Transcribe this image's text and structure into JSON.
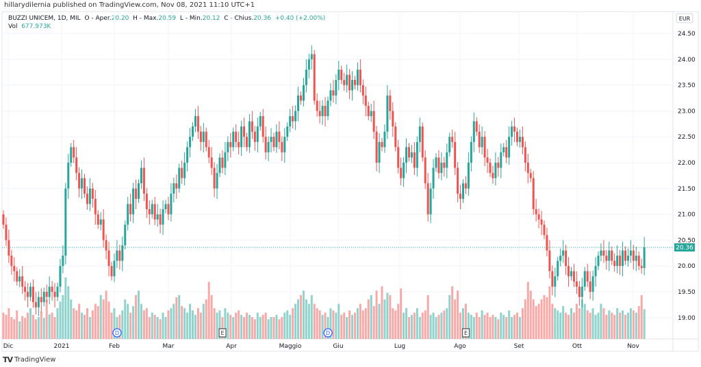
{
  "header": {
    "published": "hillarydilernia published on TradingView.com, Nov 08, 2021 11:10 UTC+1",
    "symbol": "BUZZI UNICEM, 1D, MIL",
    "o_label": "O - Aper.",
    "o": "20.20",
    "h_label": "H - Max.",
    "h": "20.59",
    "l_label": "L - Min.",
    "l": "20.12",
    "c_label": "C - Chius.",
    "c": "20.36",
    "change": "+0.40 (+2.00%)",
    "vol_label": "Vol",
    "vol": "677.973K"
  },
  "brand": {
    "logo": "TV",
    "name": "TradingView"
  },
  "colors": {
    "up": "#26a69a",
    "down": "#ef5350",
    "up_vol": "#8fd3cc",
    "down_vol": "#f7a9a7",
    "grid": "#f0f3fa",
    "event": "#2962ff"
  },
  "chart_data": {
    "type": "candlestick",
    "title": "BUZZI UNICEM, 1D, MIL",
    "currency": "EUR",
    "ylim": [
      18.6,
      24.9
    ],
    "yticks": [
      "24.50",
      "24.00",
      "23.50",
      "23.00",
      "22.50",
      "22.00",
      "21.50",
      "21.00",
      "20.50",
      "20.00",
      "19.50",
      "19.00"
    ],
    "xticks": [
      "Dic",
      "2021",
      "Feb",
      "Mar",
      "Apr",
      "Maggio",
      "Giu",
      "Lug",
      "Ago",
      "Set",
      "Ott",
      "Nov"
    ],
    "last_price": "20.36",
    "first_open": 21.0,
    "close": [
      20.8,
      20.5,
      20.2,
      20.0,
      19.9,
      19.7,
      19.8,
      19.6,
      19.5,
      19.4,
      19.6,
      19.3,
      19.2,
      19.4,
      19.3,
      19.5,
      19.4,
      19.6,
      19.5,
      19.4,
      19.6,
      20.0,
      20.2,
      21.5,
      22.0,
      22.3,
      22.1,
      21.8,
      21.5,
      21.7,
      21.4,
      21.2,
      21.5,
      21.3,
      21.0,
      20.8,
      20.9,
      20.5,
      20.3,
      20.0,
      19.8,
      20.1,
      20.3,
      20.1,
      20.4,
      20.8,
      21.2,
      21.0,
      21.5,
      21.3,
      21.6,
      21.9,
      21.4,
      21.1,
      21.0,
      21.2,
      20.9,
      21.0,
      20.8,
      21.1,
      21.2,
      21.0,
      21.4,
      21.6,
      21.5,
      21.9,
      21.7,
      22.0,
      22.3,
      22.5,
      22.7,
      22.9,
      22.6,
      22.4,
      22.6,
      22.3,
      22.1,
      21.9,
      21.5,
      21.8,
      22.1,
      21.9,
      22.2,
      22.4,
      22.3,
      22.6,
      22.4,
      22.3,
      22.7,
      22.5,
      22.3,
      22.8,
      22.6,
      22.4,
      22.7,
      22.9,
      22.5,
      22.2,
      22.4,
      22.5,
      22.3,
      22.6,
      22.4,
      22.2,
      22.5,
      22.7,
      22.9,
      22.8,
      23.0,
      23.3,
      23.2,
      23.5,
      23.8,
      24.0,
      24.1,
      23.2,
      23.0,
      22.9,
      23.1,
      22.9,
      23.2,
      23.4,
      23.3,
      23.6,
      23.8,
      23.6,
      23.5,
      23.7,
      23.4,
      23.6,
      23.5,
      23.8,
      23.5,
      23.3,
      23.1,
      22.9,
      23.0,
      22.6,
      22.0,
      22.4,
      22.3,
      22.6,
      23.3,
      23.0,
      22.7,
      22.3,
      21.9,
      21.7,
      22.0,
      22.3,
      22.1,
      22.2,
      21.9,
      22.4,
      22.7,
      22.1,
      21.6,
      21.0,
      21.5,
      21.9,
      22.1,
      21.8,
      22.0,
      21.9,
      22.2,
      22.5,
      22.4,
      21.9,
      21.4,
      21.3,
      21.6,
      21.5,
      22.0,
      22.4,
      22.8,
      22.6,
      22.3,
      22.5,
      22.1,
      22.0,
      21.8,
      21.7,
      22.0,
      21.9,
      22.2,
      22.3,
      22.1,
      22.5,
      22.7,
      22.6,
      22.4,
      22.5,
      22.3,
      22.0,
      21.8,
      21.7,
      21.1,
      21.0,
      20.9,
      20.8,
      20.6,
      20.3,
      19.9,
      19.6,
      19.8,
      20.1,
      20.2,
      20.3,
      20.0,
      19.8,
      19.9,
      19.7,
      19.6,
      19.4,
      19.6,
      19.9,
      19.7,
      19.5,
      19.8,
      20.0,
      20.2,
      20.3,
      20.2,
      20.1,
      20.3,
      20.1,
      20.0,
      20.2,
      20.0,
      20.3,
      20.1,
      20.2,
      20.3,
      20.1,
      20.2,
      20.0,
      19.96,
      20.36
    ],
    "volume_k": [
      600,
      550,
      700,
      500,
      450,
      650,
      400,
      520,
      480,
      600,
      700,
      550,
      450,
      500,
      620,
      480,
      900,
      560,
      600,
      500,
      700,
      850,
      1000,
      1400,
      1200,
      900,
      700,
      650,
      800,
      600,
      550,
      700,
      500,
      650,
      800,
      750,
      1000,
      900,
      1100,
      850,
      600,
      700,
      500,
      550,
      650,
      900,
      800,
      600,
      750,
      1000,
      1100,
      800,
      650,
      700,
      500,
      600,
      550,
      500,
      450,
      600,
      500,
      650,
      700,
      800,
      950,
      1000,
      750,
      700,
      600,
      800,
      650,
      550,
      700,
      600,
      800,
      900,
      1300,
      1000,
      700,
      600,
      650,
      500,
      700,
      600,
      550,
      500,
      600,
      650,
      550,
      500,
      600,
      550,
      500,
      450,
      600,
      500,
      550,
      600,
      450,
      500,
      500,
      550,
      450,
      500,
      600,
      650,
      550,
      700,
      800,
      900,
      1000,
      1100,
      900,
      800,
      1000,
      800,
      700,
      650,
      550,
      600,
      500,
      700,
      650,
      600,
      800,
      550,
      600,
      500,
      650,
      550,
      600,
      700,
      800,
      650,
      700,
      900,
      1000,
      750,
      1100,
      800,
      1200,
      900,
      1050,
      1000,
      700,
      650,
      800,
      1150,
      600,
      700,
      500,
      550,
      600,
      700,
      500,
      600,
      650,
      1000,
      550,
      600,
      500,
      550,
      600,
      650,
      700,
      1000,
      1200,
      900,
      1100,
      600,
      700,
      800,
      600,
      550,
      500,
      600,
      500,
      650,
      550,
      600,
      500,
      550,
      500,
      450,
      600,
      550,
      500,
      650,
      500,
      550,
      600,
      500,
      700,
      900,
      1300,
      1100,
      900,
      750,
      800,
      900,
      1000,
      950,
      1200,
      800,
      700,
      650,
      600,
      750,
      600,
      550,
      700,
      600,
      800,
      700,
      900,
      800,
      650,
      600,
      700,
      550,
      600,
      800,
      700,
      550,
      650,
      600,
      550,
      700,
      600,
      650,
      550,
      600,
      700,
      650,
      600,
      750,
      1000,
      678
    ],
    "events": [
      {
        "type": "D",
        "index": 40
      },
      {
        "type": "E",
        "index": 79
      },
      {
        "type": "D",
        "index": 118
      },
      {
        "type": "E",
        "index": 169
      }
    ]
  }
}
